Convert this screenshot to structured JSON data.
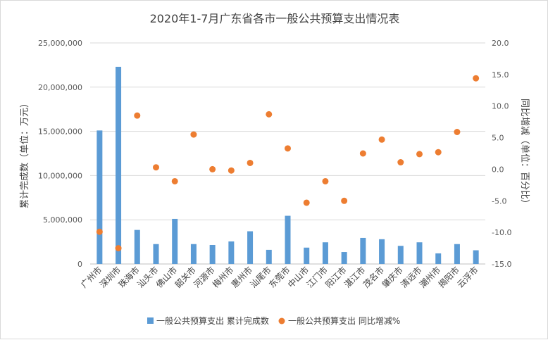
{
  "chart_data": {
    "type": "bar",
    "title": "2020年1-7月广东省各市一般公共预算支出情况表",
    "ylabel": "累计完成数（单位：万元）",
    "y2label": "同比增减（单位：百分比）",
    "ylim": [
      0,
      25000000
    ],
    "y2lim": [
      -15,
      20
    ],
    "yticks": [
      "0",
      "5,000,000",
      "10,000,000",
      "15,000,000",
      "20,000,000",
      "25,000,000"
    ],
    "y2ticks": [
      "-15.0",
      "-10.0",
      "-5.0",
      "0.0",
      "5.0",
      "10.0",
      "15.0",
      "20.0"
    ],
    "categories": [
      "广州市",
      "深圳市",
      "珠海市",
      "汕头市",
      "佛山市",
      "韶关市",
      "河源市",
      "梅州市",
      "惠州市",
      "汕尾市",
      "东莞市",
      "中山市",
      "江门市",
      "阳江市",
      "湛江市",
      "茂名市",
      "肇庆市",
      "清远市",
      "潮州市",
      "揭阳市",
      "云浮市"
    ],
    "series": [
      {
        "name": "一般公共预算支出 累计完成数",
        "type": "bar",
        "axis": "left",
        "color": "#5b9bd5",
        "values": [
          15100000,
          22300000,
          3850000,
          2250000,
          5100000,
          2250000,
          2150000,
          2550000,
          3700000,
          1600000,
          5450000,
          1850000,
          2450000,
          1350000,
          2950000,
          2800000,
          2050000,
          2450000,
          1200000,
          2250000,
          1550000
        ]
      },
      {
        "name": "一般公共预算支出 同比增减%",
        "type": "scatter",
        "axis": "right",
        "color": "#ed7d31",
        "values": [
          -9.9,
          -12.5,
          8.5,
          0.3,
          -1.9,
          5.5,
          0.0,
          -0.2,
          1.0,
          8.7,
          3.3,
          -5.3,
          -1.9,
          -5.0,
          2.5,
          4.7,
          1.1,
          2.4,
          2.7,
          5.9,
          14.4
        ]
      }
    ],
    "legend_position": "bottom",
    "grid": true
  }
}
